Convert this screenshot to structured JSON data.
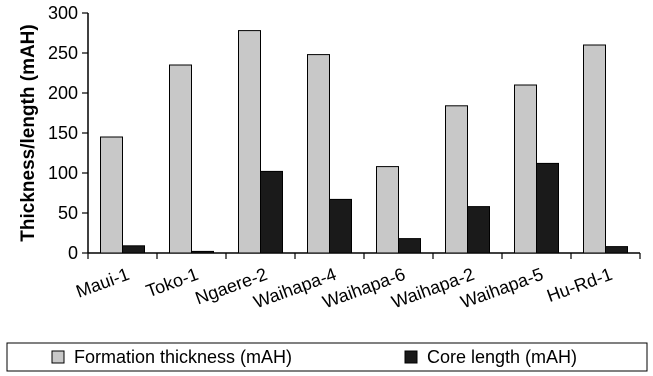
{
  "chart_data": {
    "type": "bar",
    "ylabel": "Thickness/length (mAH)",
    "ylim": [
      0,
      300
    ],
    "yticks": [
      0,
      50,
      100,
      150,
      200,
      250,
      300
    ],
    "grid": false,
    "legend_position": "bottom",
    "categories": [
      "Maui-1",
      "Toko-1",
      "Ngaere-2",
      "Waihapa-4",
      "Waihapa-6",
      "Waihapa-2",
      "Waihapa-5",
      "Hu-Rd-1"
    ],
    "series": [
      {
        "name": "Formation thickness (mAH)",
        "color": "#c8c8c8",
        "values": [
          145,
          235,
          278,
          248,
          108,
          184,
          210,
          260
        ]
      },
      {
        "name": "Core length (mAH)",
        "color": "#1a1a1a",
        "values": [
          9,
          2,
          102,
          67,
          18,
          58,
          112,
          8
        ]
      }
    ]
  }
}
